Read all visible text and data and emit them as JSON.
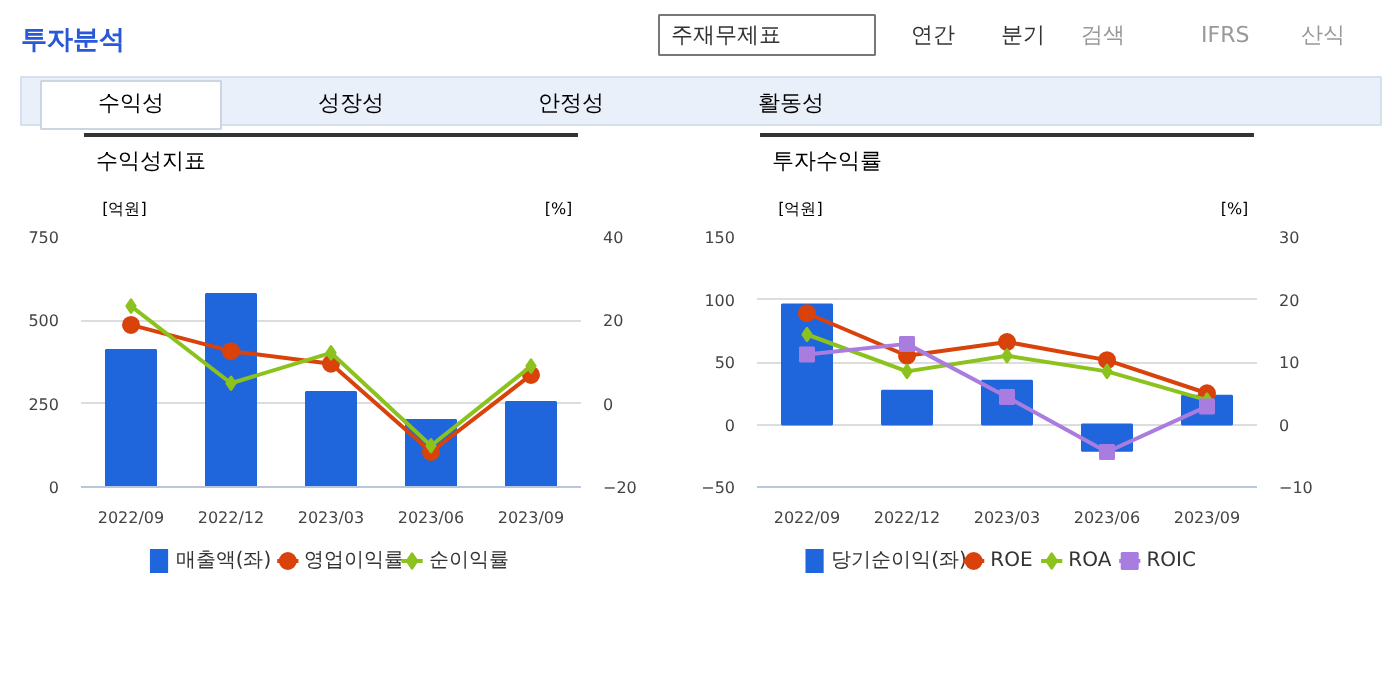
{
  "chart_data": [
    {
      "type": "bar",
      "title": "수익성지표",
      "ylabel": "[억원]",
      "y2label": "[%]",
      "categories": [
        "2022/09",
        "2022/12",
        "2023/03",
        "2023/06",
        "2023/09"
      ],
      "annotations": [
        "투자분석",
        "주재무제표",
        "연간",
        "분기",
        "검색",
        "IFRS",
        "산식",
        "수익성",
        "성장성",
        "안정성",
        "활동성"
      ],
      "series": [
        {
          "name": "매출액(좌)",
          "color": "#1f66dc",
          "values": [
            411,
            579,
            285,
            201,
            255
          ]
        },
        {
          "name": "영업이익률",
          "type": "line",
          "marker": "circle",
          "axis": "y2",
          "color": "#d9420b",
          "values": [
            18.9,
            12.6,
            9.6,
            -11.6,
            6.9
          ]
        },
        {
          "name": "순이익률",
          "type": "line",
          "marker": "diamond",
          "axis": "y2",
          "color": "#8cc21e",
          "values": [
            23.4,
            4.9,
            12.2,
            -10.1,
            9.0
          ]
        }
      ],
      "ylim": [
        0,
        750
      ],
      "yticks": [
        0,
        250,
        500,
        750
      ],
      "y2lim": [
        -20,
        40
      ],
      "y2ticks": [
        -20,
        0,
        20,
        40
      ],
      "grid": "y",
      "legend": "bottom"
    },
    {
      "type": "bar",
      "title": "투자수익률",
      "ylabel": "[억원]",
      "y2label": "[%]",
      "categories": [
        "2022/09",
        "2022/12",
        "2023/03",
        "2023/06",
        "2023/09"
      ],
      "series": [
        {
          "name": "당기순이익(좌)",
          "color": "#1f66dc",
          "values": [
            96,
            27,
            35,
            -21,
            23
          ]
        },
        {
          "name": "ROE",
          "type": "line",
          "marker": "circle",
          "axis": "y2",
          "color": "#d9420b",
          "values": [
            17.8,
            11.0,
            13.2,
            10.3,
            5.0
          ]
        },
        {
          "name": "ROA",
          "type": "line",
          "marker": "diamond",
          "axis": "y2",
          "color": "#8cc21e",
          "values": [
            14.4,
            8.5,
            11.0,
            8.5,
            3.9
          ]
        },
        {
          "name": "ROIC",
          "type": "line",
          "marker": "square",
          "axis": "y2",
          "color": "#a97de0",
          "values": [
            11.2,
            12.9,
            4.4,
            -4.4,
            2.9
          ]
        }
      ],
      "ylim": [
        -50,
        150
      ],
      "yticks": [
        -50,
        0,
        50,
        100,
        150
      ],
      "y2lim": [
        -10,
        30
      ],
      "y2ticks": [
        -10,
        0,
        10,
        20,
        30
      ],
      "grid": "y",
      "legend": "bottom"
    }
  ]
}
